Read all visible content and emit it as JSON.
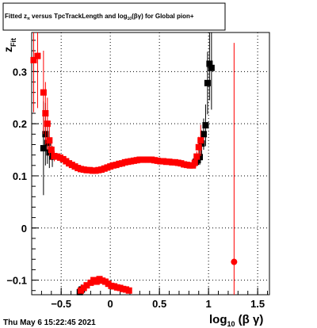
{
  "chart_data": {
    "type": "scatter",
    "title_parts": {
      "prefix": "Fitted  z",
      "sub1": "π",
      "middle": "  versus TpcTrackLength and log",
      "sub2": "10",
      "suffix": "(βγ) for Global pion+"
    },
    "xlabel_parts": {
      "main": "log",
      "sub": "10",
      "suffix": " (β γ)"
    },
    "ylabel_parts": {
      "main": "z",
      "sub": "Fit"
    },
    "timestamp": "Thu May  6 15:22:45 2021",
    "xlim": [
      -0.8,
      1.62
    ],
    "ylim": [
      -0.128,
      0.375
    ],
    "xticks": [
      {
        "value": -0.5,
        "label": "−0.5"
      },
      {
        "value": 0,
        "label": "0"
      },
      {
        "value": 0.5,
        "label": "0.5"
      },
      {
        "value": 1,
        "label": "1"
      },
      {
        "value": 1.5,
        "label": "1.5"
      }
    ],
    "yticks": [
      {
        "value": -0.1,
        "label": "−0.1"
      },
      {
        "value": 0,
        "label": "0"
      },
      {
        "value": 0.1,
        "label": "0.1"
      },
      {
        "value": 0.2,
        "label": "0.2"
      },
      {
        "value": 0.3,
        "label": "0.3"
      }
    ],
    "grid": true,
    "series": [
      {
        "color": "#000000",
        "marker": "square",
        "points": [
          {
            "x": -0.68,
            "y": 0.153,
            "err": 0.09
          },
          {
            "x": -0.66,
            "y": 0.18,
            "err": 0.06
          },
          {
            "x": -0.64,
            "y": 0.163,
            "err": 0.04
          },
          {
            "x": -0.62,
            "y": 0.145,
            "err": 0.03
          },
          {
            "x": -0.59,
            "y": 0.137,
            "err": 0.02
          },
          {
            "x": -0.31,
            "y": -0.123,
            "err": 0.01
          },
          {
            "x": -0.29,
            "y": -0.118,
            "err": 0.01
          },
          {
            "x": 0.87,
            "y": 0.127,
            "err": 0.01
          },
          {
            "x": 0.89,
            "y": 0.13,
            "err": 0.01
          },
          {
            "x": 0.91,
            "y": 0.136,
            "err": 0.015
          },
          {
            "x": 0.93,
            "y": 0.162,
            "err": 0.025
          },
          {
            "x": 0.95,
            "y": 0.18,
            "err": 0.03
          },
          {
            "x": 0.97,
            "y": 0.197,
            "err": 0.04
          },
          {
            "x": 0.99,
            "y": 0.278,
            "err": 0.06
          },
          {
            "x": 1.01,
            "y": 0.315,
            "err": 0.07
          },
          {
            "x": 1.03,
            "y": 0.307,
            "err": 0.08
          }
        ]
      },
      {
        "color": "#ff0000",
        "marker": "square",
        "points": [
          {
            "x": -0.78,
            "y": 0.322,
            "err": 0.1
          },
          {
            "x": -0.74,
            "y": 0.33,
            "err": 0.1
          },
          {
            "x": -0.68,
            "y": 0.26,
            "err": 0.08
          },
          {
            "x": -0.66,
            "y": 0.22,
            "err": 0.06
          },
          {
            "x": -0.64,
            "y": 0.2,
            "err": 0.05
          },
          {
            "x": -0.62,
            "y": 0.168,
            "err": 0.03
          },
          {
            "x": -0.6,
            "y": 0.15,
            "err": 0.02
          },
          {
            "x": -0.57,
            "y": 0.138,
            "err": 0.01
          },
          {
            "x": -0.54,
            "y": 0.137
          },
          {
            "x": -0.51,
            "y": 0.135
          },
          {
            "x": -0.48,
            "y": 0.132
          },
          {
            "x": -0.45,
            "y": 0.128
          },
          {
            "x": -0.42,
            "y": 0.124
          },
          {
            "x": -0.39,
            "y": 0.121
          },
          {
            "x": -0.36,
            "y": 0.118
          },
          {
            "x": -0.33,
            "y": 0.115
          },
          {
            "x": -0.3,
            "y": 0.113
          },
          {
            "x": -0.27,
            "y": 0.112
          },
          {
            "x": -0.24,
            "y": 0.111
          },
          {
            "x": -0.21,
            "y": 0.111
          },
          {
            "x": -0.18,
            "y": 0.11
          },
          {
            "x": -0.15,
            "y": 0.11
          },
          {
            "x": -0.12,
            "y": 0.111
          },
          {
            "x": -0.09,
            "y": 0.112
          },
          {
            "x": -0.06,
            "y": 0.114
          },
          {
            "x": -0.03,
            "y": 0.116
          },
          {
            "x": 0.0,
            "y": 0.118
          },
          {
            "x": 0.03,
            "y": 0.12
          },
          {
            "x": 0.06,
            "y": 0.121
          },
          {
            "x": 0.09,
            "y": 0.123
          },
          {
            "x": 0.12,
            "y": 0.124
          },
          {
            "x": 0.15,
            "y": 0.126
          },
          {
            "x": 0.18,
            "y": 0.127
          },
          {
            "x": 0.21,
            "y": 0.128
          },
          {
            "x": 0.24,
            "y": 0.129
          },
          {
            "x": 0.27,
            "y": 0.13
          },
          {
            "x": 0.3,
            "y": 0.131
          },
          {
            "x": 0.33,
            "y": 0.131
          },
          {
            "x": 0.36,
            "y": 0.131
          },
          {
            "x": 0.39,
            "y": 0.131
          },
          {
            "x": 0.42,
            "y": 0.131
          },
          {
            "x": 0.45,
            "y": 0.13
          },
          {
            "x": 0.48,
            "y": 0.129
          },
          {
            "x": 0.51,
            "y": 0.128
          },
          {
            "x": 0.54,
            "y": 0.128
          },
          {
            "x": 0.57,
            "y": 0.127
          },
          {
            "x": 0.6,
            "y": 0.127
          },
          {
            "x": 0.63,
            "y": 0.126
          },
          {
            "x": 0.66,
            "y": 0.126
          },
          {
            "x": 0.69,
            "y": 0.125
          },
          {
            "x": 0.72,
            "y": 0.124
          },
          {
            "x": 0.75,
            "y": 0.122
          },
          {
            "x": 0.78,
            "y": 0.121
          },
          {
            "x": 0.81,
            "y": 0.12
          },
          {
            "x": 0.84,
            "y": 0.12
          },
          {
            "x": 0.86,
            "y": 0.125
          },
          {
            "x": 0.88,
            "y": 0.137,
            "err": 0.01
          },
          {
            "x": 0.9,
            "y": 0.155,
            "err": 0.02
          },
          {
            "x": 0.92,
            "y": 0.168,
            "err": 0.03
          },
          {
            "x": -0.3,
            "y": -0.12
          },
          {
            "x": -0.27,
            "y": -0.115
          },
          {
            "x": -0.24,
            "y": -0.11
          },
          {
            "x": -0.2,
            "y": -0.105
          },
          {
            "x": -0.17,
            "y": -0.1
          },
          {
            "x": -0.14,
            "y": -0.103
          },
          {
            "x": -0.11,
            "y": -0.098
          },
          {
            "x": -0.08,
            "y": -0.101
          },
          {
            "x": -0.05,
            "y": -0.103
          },
          {
            "x": -0.02,
            "y": -0.107
          },
          {
            "x": 0.01,
            "y": -0.111
          },
          {
            "x": 0.04,
            "y": -0.112
          },
          {
            "x": 0.07,
            "y": -0.114
          },
          {
            "x": 0.1,
            "y": -0.115
          },
          {
            "x": 0.13,
            "y": -0.117
          },
          {
            "x": 0.16,
            "y": -0.118
          },
          {
            "x": 0.19,
            "y": -0.12
          }
        ]
      },
      {
        "color": "#ff0000",
        "marker": "circle",
        "points": [
          {
            "x": 1.26,
            "y": -0.065,
            "err": 0.42
          }
        ]
      }
    ]
  }
}
